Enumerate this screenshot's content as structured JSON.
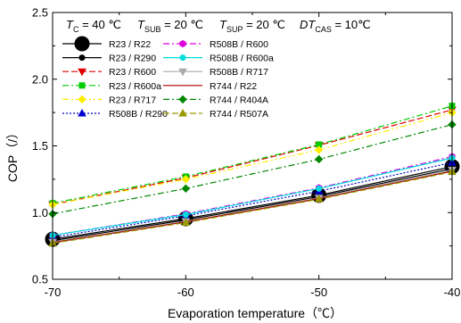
{
  "chart_data": {
    "type": "line",
    "xlabel": "Evaporation temperature（℃）",
    "ylabel": "COP（/）",
    "xlim": [
      -70,
      -40
    ],
    "ylim": [
      0.5,
      2.5
    ],
    "x_ticks": [
      "-70",
      "-60",
      "-50",
      "-40"
    ],
    "y_ticks": [
      "0.5",
      "1.0",
      "1.5",
      "2.0",
      "2.5"
    ],
    "grid": false,
    "legend_position": "top-left",
    "conditions": [
      {
        "sym": "T",
        "sub": "C",
        "rest": " = 40 ℃"
      },
      {
        "sym": "T",
        "sub": "SUB",
        "rest": " = 20 ℃"
      },
      {
        "sym": "T",
        "sub": "SUP",
        "rest": " = 20 ℃"
      },
      {
        "sym": "DT",
        "sub": "CAS",
        "rest": " = 10℃"
      }
    ],
    "x": [
      -70,
      -60,
      -50,
      -40
    ],
    "series": [
      {
        "name": "R23 / R22",
        "values": [
          0.8,
          0.955,
          1.13,
          1.345
        ],
        "color": "#000000",
        "marker": "circle-big",
        "dash": ""
      },
      {
        "name": "R23 / R290",
        "values": [
          0.79,
          0.945,
          1.12,
          1.33
        ],
        "color": "#000000",
        "marker": "circle",
        "dash": ""
      },
      {
        "name": "R23 / R600",
        "values": [
          1.06,
          1.26,
          1.505,
          1.77
        ],
        "color": "#e00000",
        "marker": "triangle-down",
        "dash": "7,3"
      },
      {
        "name": "R23 / R600a",
        "values": [
          1.07,
          1.27,
          1.51,
          1.8
        ],
        "color": "#00cc00",
        "marker": "square",
        "dash": "7,3,2,3"
      },
      {
        "name": "R23 / R717",
        "values": [
          1.06,
          1.25,
          1.47,
          1.75
        ],
        "color": "#ffee00",
        "marker": "diamond",
        "dash": "7,3,2,3,2,3"
      },
      {
        "name": "R508B / R290",
        "values": [
          0.815,
          0.975,
          1.16,
          1.375
        ],
        "color": "#0000cc",
        "marker": "triangle-up",
        "dash": "2,2"
      },
      {
        "name": "R508B / R600",
        "values": [
          0.83,
          0.99,
          1.185,
          1.42
        ],
        "color": "#dd00dd",
        "marker": "hexagon",
        "dash": "7,3,2,3"
      },
      {
        "name": "R508B / R600a",
        "values": [
          0.83,
          0.985,
          1.18,
          1.41
        ],
        "color": "#00dddd",
        "marker": "circle",
        "dash": ""
      },
      {
        "name": "R508B / R717",
        "values": [
          0.78,
          0.935,
          1.11,
          1.32
        ],
        "color": "#aaaaaa",
        "marker": "triangle-down",
        "dash": ""
      },
      {
        "name": "R744 / R22",
        "values": [
          0.775,
          0.93,
          1.105,
          1.31
        ],
        "color": "#aa0000",
        "marker": "none",
        "dash": ""
      },
      {
        "name": "R744 / R404A",
        "values": [
          0.99,
          1.18,
          1.4,
          1.66
        ],
        "color": "#008800",
        "marker": "diamond",
        "dash": "7,3,2,3"
      },
      {
        "name": "R744 / R507A",
        "values": [
          0.77,
          0.925,
          1.1,
          1.305
        ],
        "color": "#999900",
        "marker": "triangle-up",
        "dash": "7,3"
      }
    ]
  }
}
